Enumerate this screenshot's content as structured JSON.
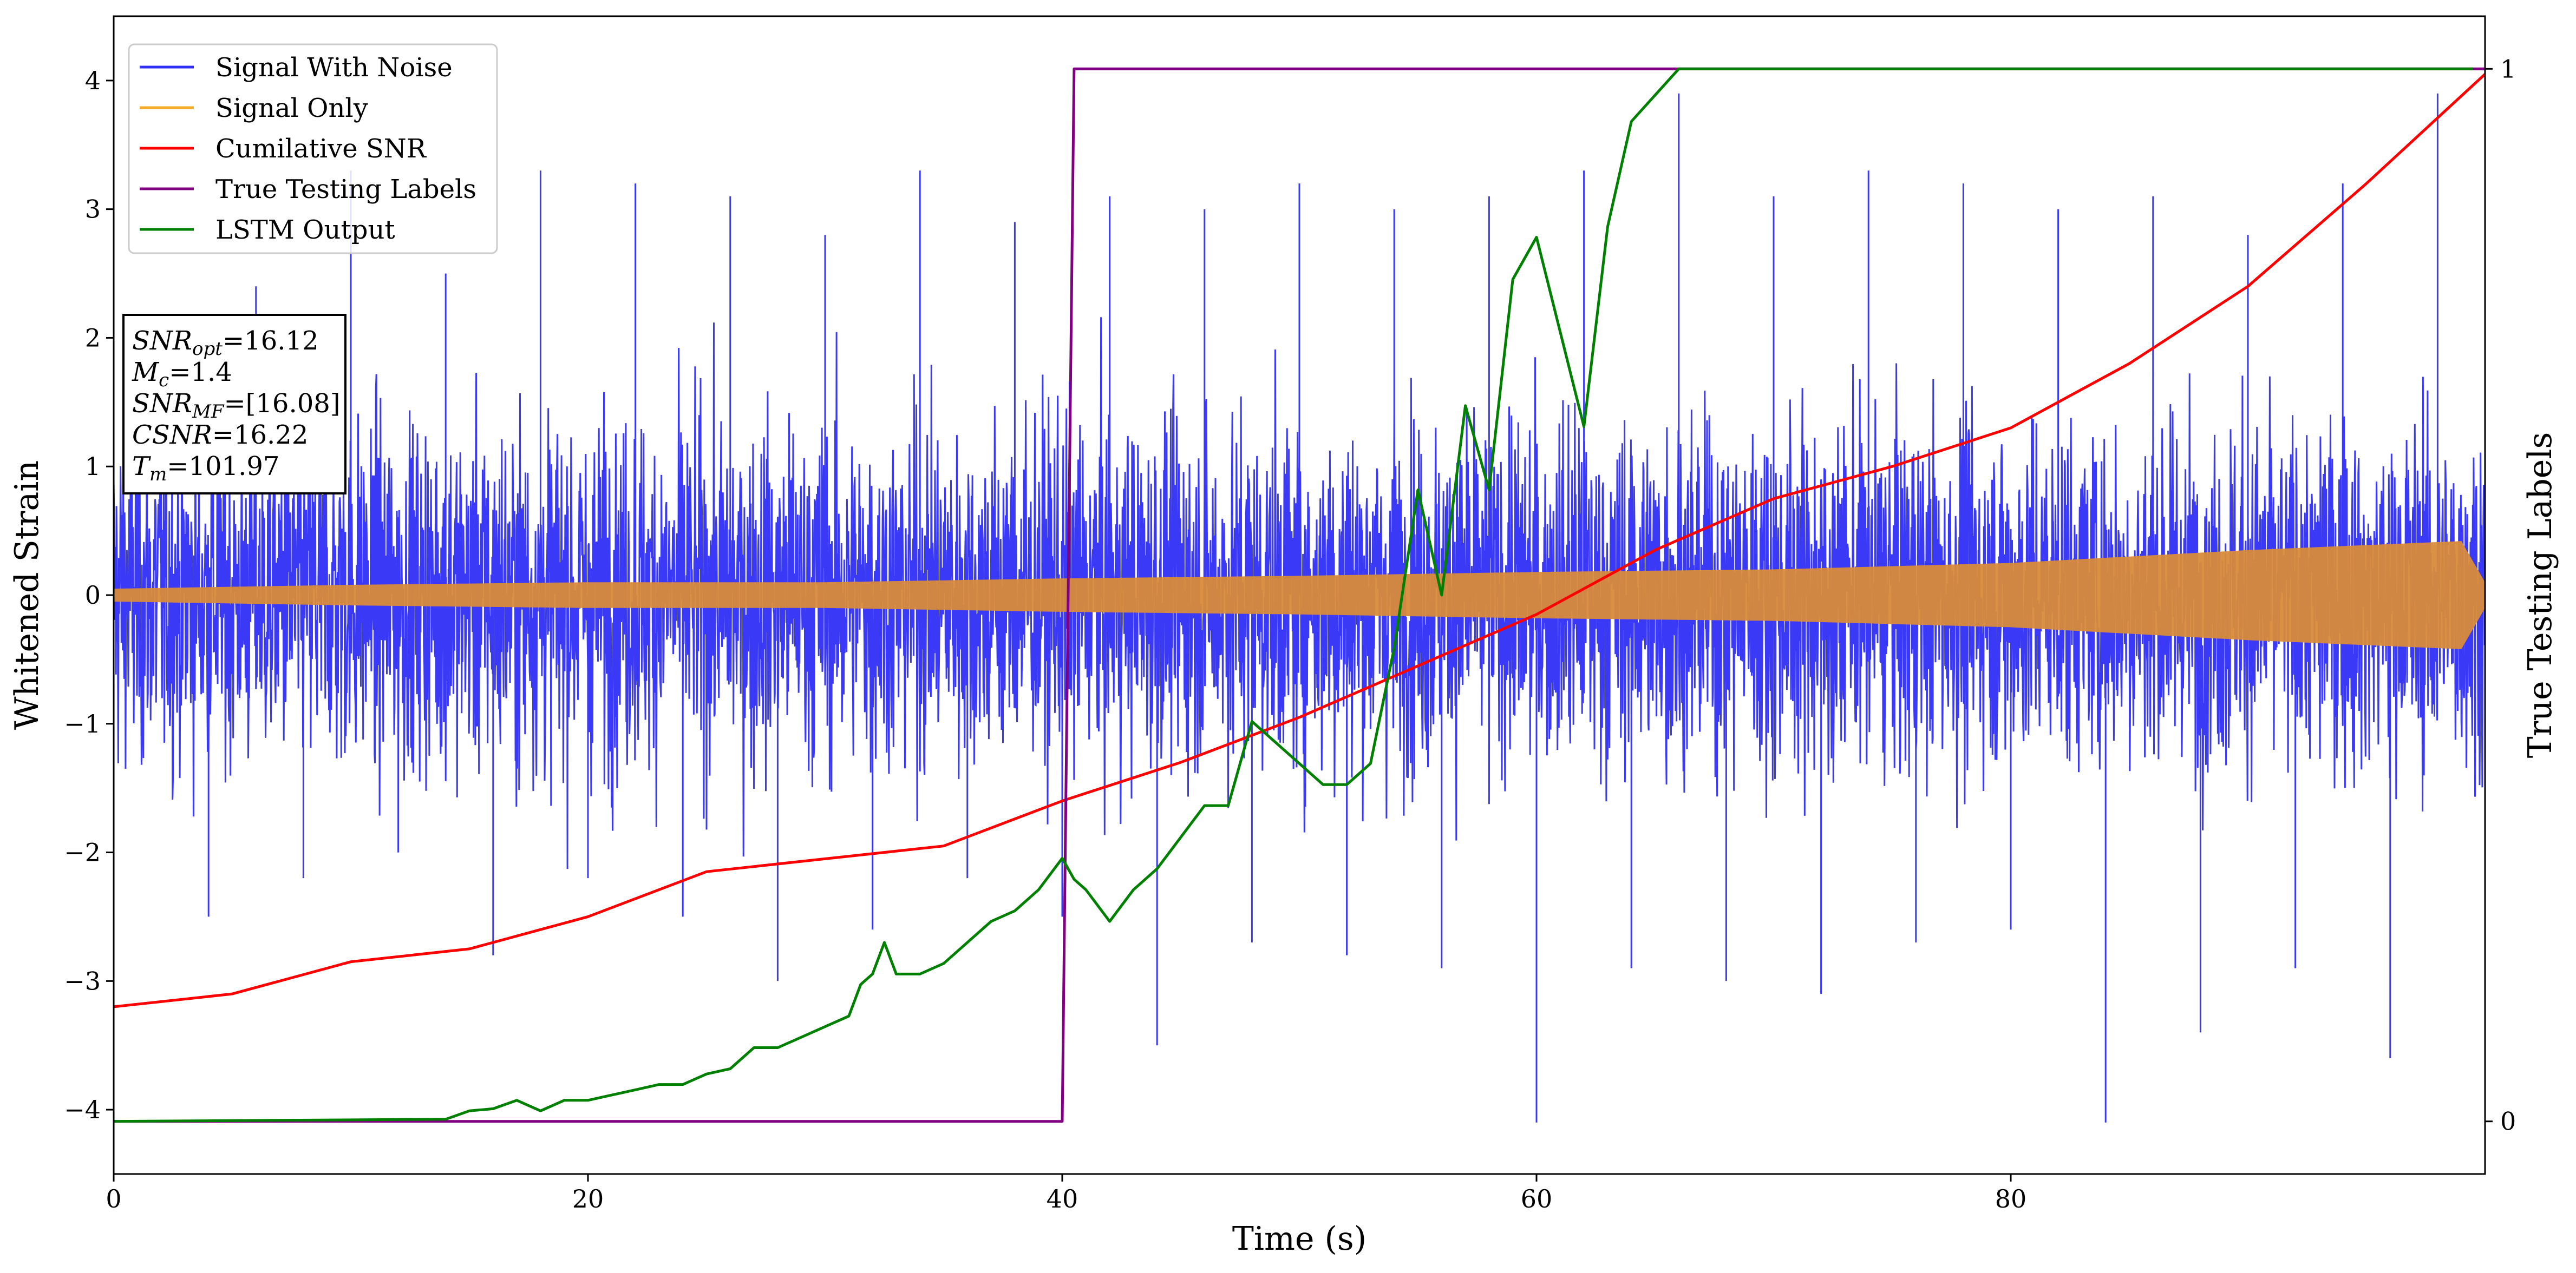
{
  "chart_data": {
    "type": "line",
    "xlabel": "Time (s)",
    "ylabel": "Whitened Strain",
    "y2label": "True Testing Labels",
    "xlim": [
      0,
      100
    ],
    "ylim": [
      -4.5,
      4.5
    ],
    "y2lim": [
      -0.05,
      1.05
    ],
    "xticks": [
      "0",
      "20",
      "40",
      "60",
      "80"
    ],
    "yticks": [
      "-4",
      "-3",
      "-2",
      "-1",
      "0",
      "1",
      "2",
      "3",
      "4"
    ],
    "y2ticks": [
      "0",
      "1"
    ],
    "grid": false,
    "legend_position": "top-left",
    "series": [
      {
        "name": "Signal With Noise",
        "axis": "left",
        "color": "#2f2ff5",
        "style": "dense-noise",
        "points": [
          [
            0,
            -2.2
          ],
          [
            2,
            2.1
          ],
          [
            4,
            -2.5
          ],
          [
            6,
            2.4
          ],
          [
            8,
            -2.2
          ],
          [
            10,
            3.3
          ],
          [
            12,
            -2.0
          ],
          [
            14,
            2.5
          ],
          [
            16,
            -2.8
          ],
          [
            18,
            3.3
          ],
          [
            20,
            -2.2
          ],
          [
            22,
            3.2
          ],
          [
            24,
            -2.5
          ],
          [
            26,
            3.1
          ],
          [
            28,
            -3.0
          ],
          [
            30,
            2.8
          ],
          [
            32,
            -2.6
          ],
          [
            34,
            3.3
          ],
          [
            36,
            -2.2
          ],
          [
            38,
            2.9
          ],
          [
            40,
            -2.5
          ],
          [
            42,
            3.1
          ],
          [
            44,
            -3.5
          ],
          [
            46,
            3.0
          ],
          [
            48,
            -2.7
          ],
          [
            50,
            3.2
          ],
          [
            52,
            -2.8
          ],
          [
            54,
            3.0
          ],
          [
            56,
            -2.9
          ],
          [
            58,
            3.1
          ],
          [
            60,
            -4.1
          ],
          [
            62,
            3.3
          ],
          [
            64,
            -2.9
          ],
          [
            66,
            3.9
          ],
          [
            68,
            -3.0
          ],
          [
            70,
            3.1
          ],
          [
            72,
            -3.1
          ],
          [
            74,
            3.3
          ],
          [
            76,
            -2.7
          ],
          [
            78,
            3.2
          ],
          [
            80,
            -2.6
          ],
          [
            82,
            3.0
          ],
          [
            84,
            -4.1
          ],
          [
            86,
            3.1
          ],
          [
            88,
            -3.4
          ],
          [
            90,
            2.8
          ],
          [
            92,
            -2.9
          ],
          [
            94,
            3.2
          ],
          [
            96,
            -3.6
          ],
          [
            98,
            3.9
          ],
          [
            100,
            -0.9
          ]
        ]
      },
      {
        "name": "Signal Only",
        "axis": "left",
        "color": "#f5ad28",
        "style": "envelope",
        "envelope": [
          [
            0,
            0.05
          ],
          [
            10,
            0.08
          ],
          [
            20,
            0.1
          ],
          [
            30,
            0.1
          ],
          [
            40,
            0.13
          ],
          [
            50,
            0.15
          ],
          [
            60,
            0.18
          ],
          [
            70,
            0.2
          ],
          [
            80,
            0.25
          ],
          [
            90,
            0.35
          ],
          [
            99,
            0.42
          ],
          [
            100,
            0.1
          ]
        ]
      },
      {
        "name": "Cumilative SNR",
        "axis": "left",
        "color": "#ff0000",
        "points": [
          [
            0,
            -3.2
          ],
          [
            5,
            -3.1
          ],
          [
            10,
            -2.85
          ],
          [
            15,
            -2.75
          ],
          [
            20,
            -2.5
          ],
          [
            25,
            -2.15
          ],
          [
            30,
            -2.05
          ],
          [
            35,
            -1.95
          ],
          [
            40,
            -1.6
          ],
          [
            45,
            -1.3
          ],
          [
            50,
            -0.95
          ],
          [
            55,
            -0.55
          ],
          [
            60,
            -0.15
          ],
          [
            65,
            0.35
          ],
          [
            70,
            0.75
          ],
          [
            75,
            1.0
          ],
          [
            80,
            1.3
          ],
          [
            85,
            1.8
          ],
          [
            90,
            2.4
          ],
          [
            95,
            3.2
          ],
          [
            100,
            4.05
          ]
        ]
      },
      {
        "name": "True Testing Labels",
        "axis": "right",
        "color": "#800080",
        "points": [
          [
            0,
            0
          ],
          [
            40,
            0
          ],
          [
            40.5,
            1
          ],
          [
            100,
            1
          ]
        ]
      },
      {
        "name": "LSTM Output",
        "axis": "right",
        "color": "#008000",
        "points": [
          [
            0,
            0
          ],
          [
            14,
            0.002
          ],
          [
            15,
            0.01
          ],
          [
            16,
            0.012
          ],
          [
            17,
            0.02
          ],
          [
            18,
            0.01
          ],
          [
            19,
            0.02
          ],
          [
            20,
            0.02
          ],
          [
            21,
            0.025
          ],
          [
            22,
            0.03
          ],
          [
            23,
            0.035
          ],
          [
            24,
            0.035
          ],
          [
            25,
            0.045
          ],
          [
            26,
            0.05
          ],
          [
            27,
            0.07
          ],
          [
            28,
            0.07
          ],
          [
            29,
            0.08
          ],
          [
            30,
            0.09
          ],
          [
            31,
            0.1
          ],
          [
            31.5,
            0.13
          ],
          [
            32,
            0.14
          ],
          [
            32.5,
            0.17
          ],
          [
            33,
            0.14
          ],
          [
            34,
            0.14
          ],
          [
            35,
            0.15
          ],
          [
            36,
            0.17
          ],
          [
            37,
            0.19
          ],
          [
            38,
            0.2
          ],
          [
            39,
            0.22
          ],
          [
            40,
            0.25
          ],
          [
            40.5,
            0.23
          ],
          [
            41,
            0.22
          ],
          [
            42,
            0.19
          ],
          [
            43,
            0.22
          ],
          [
            44,
            0.24
          ],
          [
            45,
            0.27
          ],
          [
            46,
            0.3
          ],
          [
            47,
            0.3
          ],
          [
            48,
            0.38
          ],
          [
            49,
            0.36
          ],
          [
            50,
            0.34
          ],
          [
            51,
            0.32
          ],
          [
            52,
            0.32
          ],
          [
            53,
            0.34
          ],
          [
            54,
            0.45
          ],
          [
            55,
            0.6
          ],
          [
            56,
            0.5
          ],
          [
            57,
            0.68
          ],
          [
            58,
            0.6
          ],
          [
            59,
            0.8
          ],
          [
            60,
            0.84
          ],
          [
            61,
            0.75
          ],
          [
            62,
            0.66
          ],
          [
            63,
            0.85
          ],
          [
            64,
            0.95
          ],
          [
            66,
            1.0
          ],
          [
            68,
            1.0
          ],
          [
            70,
            1.0
          ],
          [
            75,
            1.0
          ],
          [
            80,
            1.0
          ],
          [
            90,
            1.0
          ],
          [
            99.5,
            1.0
          ]
        ]
      }
    ]
  },
  "annotation": {
    "lines": [
      {
        "main": "SNR",
        "sub": "opt",
        "value": "=16.12"
      },
      {
        "main": "M",
        "sub": "c",
        "value": "=1.4"
      },
      {
        "main": "SNR",
        "sub": "MF",
        "value": "=[16.08]"
      },
      {
        "main": "CSNR",
        "sub": "",
        "value": "=16.22"
      },
      {
        "main": "T",
        "sub": "m",
        "value": "=101.97"
      }
    ]
  }
}
